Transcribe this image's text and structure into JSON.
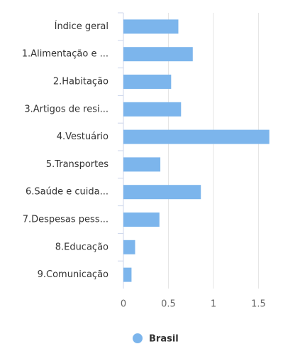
{
  "chart_data": {
    "type": "bar",
    "orientation": "horizontal",
    "categories": [
      "Índice geral",
      "1.Alimentação e ...",
      "2.Habitação",
      "3.Artigos de resi...",
      "4.Vestuário",
      "5.Transportes",
      "6.Saúde e cuida...",
      "7.Despesas pess...",
      "8.Educação",
      "9.Comunicação"
    ],
    "series": [
      {
        "name": "Brasil",
        "color": "#7cb5ec",
        "values": [
          0.61,
          0.77,
          0.53,
          0.64,
          1.62,
          0.41,
          0.86,
          0.4,
          0.13,
          0.09
        ]
      }
    ],
    "xlim": [
      0,
      2
    ],
    "xticks": [
      0,
      0.5,
      1,
      1.5,
      2
    ],
    "grid": true,
    "legend": "bottom"
  }
}
